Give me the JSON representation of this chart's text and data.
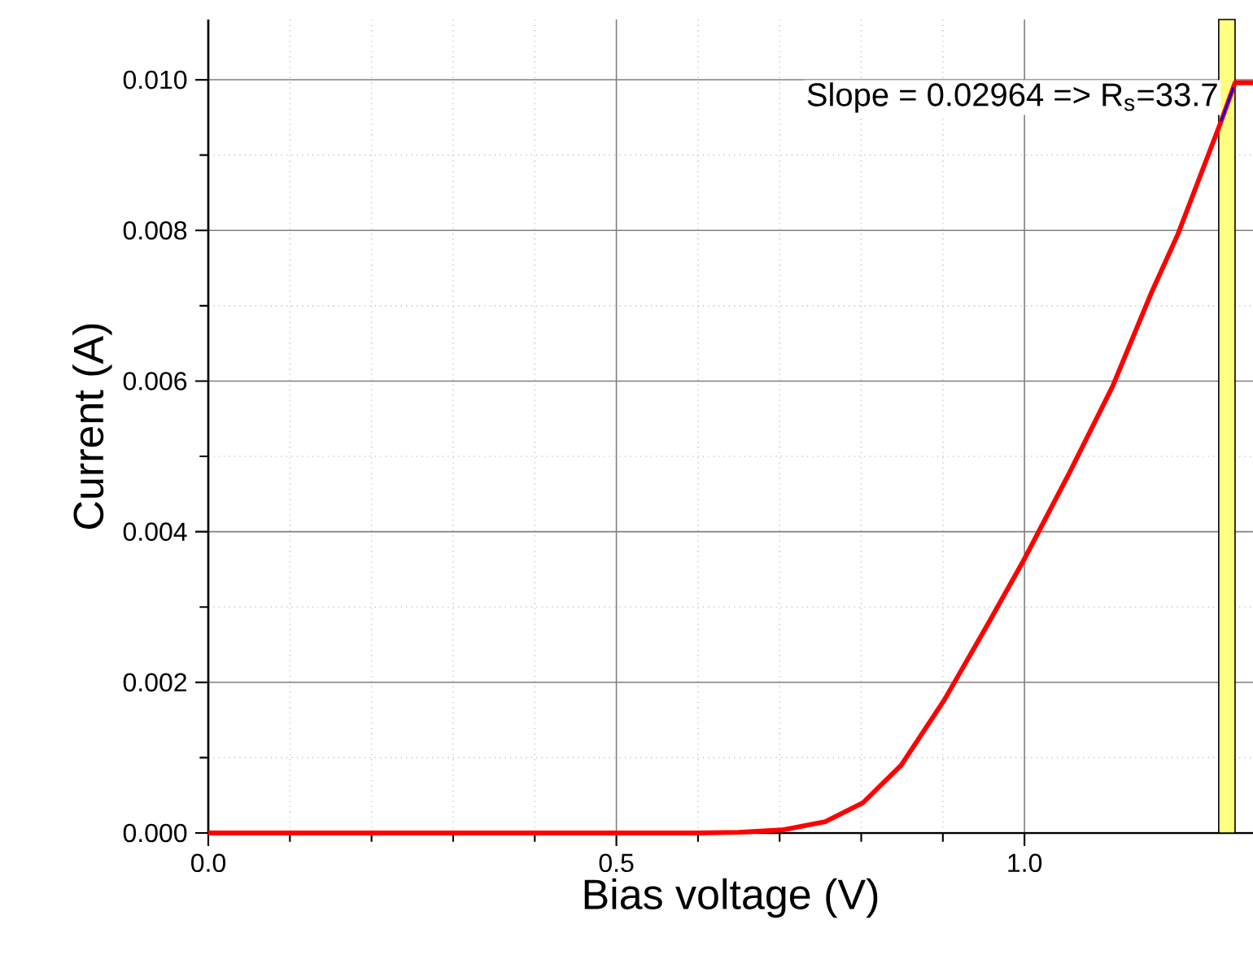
{
  "chart_data": {
    "type": "line",
    "xlabel": "Bias voltage (V)",
    "ylabel": "Current (A)",
    "xlim": [
      0,
      1.28
    ],
    "ylim": [
      0,
      0.0108
    ],
    "xticks": [
      {
        "value": 0,
        "label": "0.0"
      },
      {
        "value": 0.5,
        "label": "0.5"
      },
      {
        "value": 1.0,
        "label": "1.0"
      }
    ],
    "yticks": [
      {
        "value": 0,
        "label": "0.000"
      },
      {
        "value": 0.002,
        "label": "0.002"
      },
      {
        "value": 0.004,
        "label": "0.004"
      },
      {
        "value": 0.006,
        "label": "0.006"
      },
      {
        "value": 0.008,
        "label": "0.008"
      },
      {
        "value": 0.01,
        "label": "0.010"
      }
    ],
    "grid": true,
    "marker": "none",
    "line_style": "solid",
    "series": [
      {
        "color": "#ff0000",
        "x": [
          0,
          0.3,
          0.6,
          0.65,
          0.703,
          0.756,
          0.802,
          0.849,
          0.902,
          0.955,
          1.0,
          1.055,
          1.108,
          1.155,
          1.188,
          1.241,
          1.258,
          1.28
        ],
        "values": [
          0,
          0,
          0,
          1e-05,
          4e-05,
          0.00015,
          0.0004,
          0.0009,
          0.00177,
          0.00277,
          0.00364,
          0.00478,
          0.00593,
          0.00716,
          0.00795,
          0.00945,
          0.00996,
          0.00996
        ]
      },
      {
        "color": "#0000ff",
        "x": [
          1.241,
          1.256
        ],
        "values": [
          0.00945,
          0.0099
        ]
      }
    ],
    "bands": [
      {
        "axis": "x",
        "from": 1.238,
        "to": 1.258,
        "color": "#ffff80"
      }
    ],
    "annotations": [
      "Slope = 0.02964 => R$_{s}$=33.7"
    ]
  }
}
